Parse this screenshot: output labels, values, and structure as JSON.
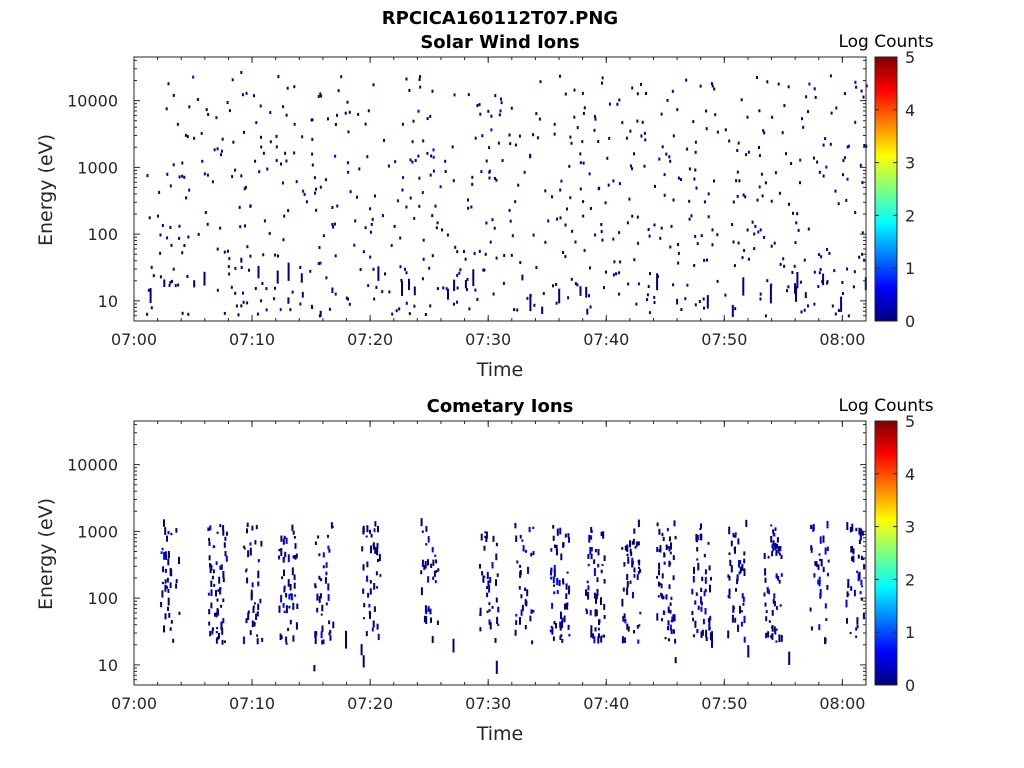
{
  "figure": {
    "title": "RPCICA160112T07.PNG"
  },
  "colorscale": [
    "#00007f",
    "#0000ff",
    "#007fff",
    "#00ffff",
    "#7fff7f",
    "#ffff00",
    "#ff7f00",
    "#ff0000",
    "#7f0000"
  ],
  "chart_data": [
    {
      "type": "heatmap",
      "title": "Solar Wind Ions",
      "xlabel": "Time",
      "ylabel": "Energy (eV)",
      "yscale": "log",
      "ylim": [
        5,
        45000
      ],
      "xlim": [
        "07:00",
        "08:02"
      ],
      "xticks": [
        "07:00",
        "07:10",
        "07:20",
        "07:30",
        "07:40",
        "07:50",
        "08:00"
      ],
      "yticks": [
        "10",
        "100",
        "1000",
        "10000"
      ],
      "colorbar": {
        "title": "Log Counts",
        "range": [
          0,
          5
        ],
        "ticks": [
          "0",
          "1",
          "2",
          "3",
          "4",
          "5"
        ]
      },
      "data_start": "07:01",
      "data_end": "08:02",
      "data": {
        "level": "low (~0-1 log counts)",
        "points": [
          [
            "07:09",
            25000
          ],
          [
            "07:18",
            9000
          ],
          [
            "07:23",
            20000
          ],
          [
            "07:25",
            5500
          ],
          [
            "07:29",
            8000
          ],
          [
            "07:31",
            10000
          ],
          [
            "07:36",
            22000
          ],
          [
            "07:39",
            5000
          ],
          [
            "07:43",
            4500
          ],
          [
            "07:55",
            8000
          ],
          [
            "07:57",
            6500
          ],
          [
            "08:01",
            4500
          ],
          [
            "07:04",
            700
          ],
          [
            "07:07",
            1800
          ],
          [
            "07:12",
            1200
          ],
          [
            "07:15",
            1500
          ],
          [
            "07:19",
            900
          ],
          [
            "07:24",
            1400
          ],
          [
            "07:27",
            600
          ],
          [
            "07:33",
            800
          ],
          [
            "07:38",
            1100
          ],
          [
            "07:40",
            1300
          ],
          [
            "07:42",
            1000
          ],
          [
            "07:45",
            1500
          ],
          [
            "07:47",
            900
          ],
          [
            "07:52",
            1600
          ],
          [
            "07:58",
            800
          ],
          [
            "08:00",
            1200
          ],
          [
            "07:03",
            120
          ],
          [
            "07:06",
            200
          ],
          [
            "07:11",
            150
          ],
          [
            "07:16",
            90
          ],
          [
            "07:21",
            180
          ],
          [
            "07:26",
            110
          ],
          [
            "07:32",
            90
          ],
          [
            "07:35",
            150
          ],
          [
            "07:41",
            100
          ],
          [
            "07:44",
            130
          ],
          [
            "07:48",
            90
          ],
          [
            "07:53",
            110
          ],
          [
            "07:56",
            140
          ],
          [
            "08:01",
            200
          ],
          [
            "07:04",
            50
          ],
          [
            "07:09",
            40
          ],
          [
            "07:14",
            30
          ],
          [
            "07:17",
            45
          ],
          [
            "07:23",
            25
          ],
          [
            "07:28",
            40
          ],
          [
            "07:34",
            30
          ],
          [
            "07:37",
            20
          ],
          [
            "07:41",
            25
          ],
          [
            "07:46",
            35
          ],
          [
            "07:52",
            40
          ],
          [
            "07:58",
            25
          ],
          [
            "07:03",
            18
          ],
          [
            "07:09",
            8
          ],
          [
            "07:13",
            10
          ],
          [
            "07:17",
            12
          ],
          [
            "07:25",
            8
          ],
          [
            "07:29",
            10
          ],
          [
            "07:41",
            12
          ],
          [
            "07:44",
            9
          ],
          [
            "07:53",
            12
          ],
          [
            "07:57",
            8
          ]
        ]
      }
    },
    {
      "type": "heatmap",
      "title": "Cometary Ions",
      "xlabel": "Time",
      "ylabel": "Energy (eV)",
      "yscale": "log",
      "ylim": [
        5,
        45000
      ],
      "xlim": [
        "07:00",
        "08:02"
      ],
      "xticks": [
        "07:00",
        "07:10",
        "07:20",
        "07:30",
        "07:40",
        "07:50",
        "08:00"
      ],
      "yticks": [
        "10",
        "100",
        "1000",
        "10000"
      ],
      "colorbar": {
        "title": "Log Counts",
        "range": [
          0,
          5
        ],
        "ticks": [
          "0",
          "1",
          "2",
          "3",
          "4",
          "5"
        ]
      },
      "data_start": "07:02",
      "data_end": "08:02",
      "data": {
        "level": "low to moderate (~0-1.5 log counts)",
        "bursts": [
          "07:03",
          "07:07",
          "07:10",
          "07:13",
          "07:16",
          "07:20",
          "07:25",
          "07:30",
          "07:33",
          "07:36",
          "07:39",
          "07:42",
          "07:45",
          "07:48",
          "07:51",
          "07:54",
          "07:58",
          "08:01"
        ],
        "burst_energy_range": [
          20,
          1200
        ],
        "brightest_burst": "07:43"
      }
    }
  ]
}
